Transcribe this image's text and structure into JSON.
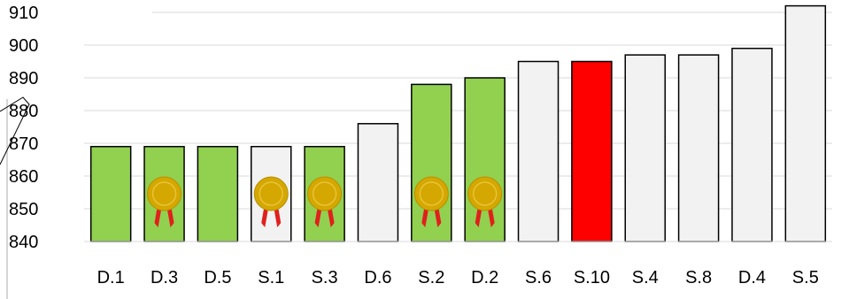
{
  "chart_data": {
    "type": "bar",
    "title": "",
    "xlabel": "",
    "ylabel": "",
    "categories": [
      "D.1",
      "D.3",
      "D.5",
      "S.1",
      "S.3",
      "D.6",
      "S.2",
      "D.2",
      "S.6",
      "S.10",
      "S.4",
      "S.8",
      "D.4",
      "S.5"
    ],
    "values": [
      869,
      869,
      869,
      869,
      869,
      876,
      888,
      890,
      895,
      895,
      897,
      897,
      899,
      912
    ],
    "ylim": [
      840,
      910
    ],
    "yticks": [
      840,
      850,
      860,
      870,
      880,
      890,
      900,
      910
    ],
    "ytick_labels": [
      "840",
      "850",
      "860",
      "870",
      "880",
      "890",
      "900",
      "910"
    ],
    "grid": true,
    "bar_colors": [
      "#92d050",
      "#92d050",
      "#92d050",
      "#f2f2f2",
      "#92d050",
      "#f2f2f2",
      "#92d050",
      "#92d050",
      "#f2f2f2",
      "#ff0000",
      "#f2f2f2",
      "#f2f2f2",
      "#f2f2f2",
      "#f2f2f2"
    ],
    "medals": [
      false,
      true,
      false,
      true,
      true,
      false,
      true,
      true,
      false,
      false,
      false,
      false,
      false,
      false
    ],
    "colors": {
      "green": "#92d050",
      "highlight": "#ff0000",
      "neutral": "#f2f2f2",
      "medal_gold": "#d4a800",
      "ribbon": "#e0201c",
      "gridline": "#d9d9d9"
    },
    "icons": {
      "medal": "medal-icon",
      "callout": "callout-pointer"
    }
  }
}
